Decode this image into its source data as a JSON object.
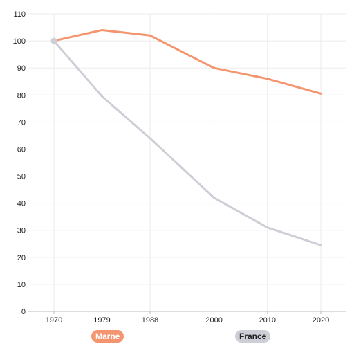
{
  "chart_data": {
    "type": "line",
    "x": [
      1970,
      1979,
      1988,
      2000,
      2010,
      2020
    ],
    "series": [
      {
        "name": "Marne",
        "values": [
          100,
          104,
          102,
          90,
          86,
          80.5
        ],
        "color": "#f4956f"
      },
      {
        "name": "France",
        "values": [
          100,
          79.5,
          64,
          42,
          31,
          24.5
        ],
        "color": "#cdced6"
      }
    ],
    "title": "",
    "xlabel": "",
    "ylabel": "",
    "ylim": [
      0,
      110
    ],
    "yticks": [
      0,
      10,
      20,
      30,
      40,
      50,
      60,
      70,
      80,
      90,
      100,
      110
    ],
    "xticks": [
      "1970",
      "1979",
      "1988",
      "2000",
      "2010",
      "2020"
    ],
    "grid": true,
    "legend_placement": "bottom",
    "start_marker_color": "#cdced6"
  }
}
